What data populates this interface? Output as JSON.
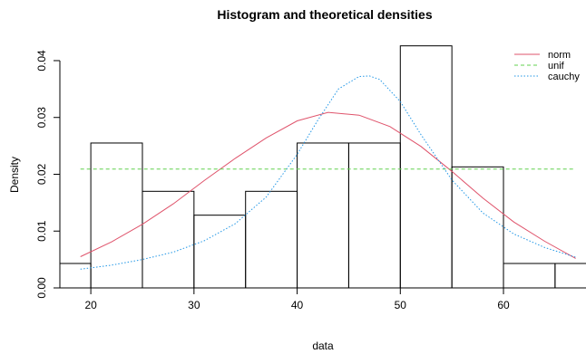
{
  "chart_data": {
    "type": "bar",
    "title": "Histogram and theoretical densities",
    "xlabel": "data",
    "ylabel": "Density",
    "xlim": [
      17,
      68
    ],
    "ylim": [
      0,
      0.0435
    ],
    "x_ticks": [
      20,
      30,
      40,
      50,
      60
    ],
    "y_ticks": [
      0.0,
      0.01,
      0.02,
      0.03,
      0.04
    ],
    "y_tick_labels": [
      "0.00",
      "0.01",
      "0.02",
      "0.03",
      "0.04"
    ],
    "grid": false,
    "legend_position": "top-right",
    "histogram": {
      "bins": [
        {
          "x0": 15,
          "x1": 20,
          "density": 0.0043
        },
        {
          "x0": 20,
          "x1": 25,
          "density": 0.0255
        },
        {
          "x0": 25,
          "x1": 30,
          "density": 0.017
        },
        {
          "x0": 30,
          "x1": 35,
          "density": 0.0128
        },
        {
          "x0": 35,
          "x1": 40,
          "density": 0.017
        },
        {
          "x0": 40,
          "x1": 45,
          "density": 0.0255
        },
        {
          "x0": 45,
          "x1": 50,
          "density": 0.0255
        },
        {
          "x0": 50,
          "x1": 55,
          "density": 0.0426
        },
        {
          "x0": 55,
          "x1": 60,
          "density": 0.0213
        },
        {
          "x0": 60,
          "x1": 65,
          "density": 0.0043
        },
        {
          "x0": 65,
          "x1": 70,
          "density": 0.0043
        }
      ]
    },
    "series": [
      {
        "name": "norm",
        "color": "#DF536B",
        "style": "solid",
        "x": [
          19,
          22,
          25,
          28,
          31,
          34,
          37,
          40,
          43,
          46,
          49,
          52,
          55,
          58,
          61,
          64,
          67
        ],
        "y": [
          0.0055,
          0.0081,
          0.0112,
          0.0148,
          0.0189,
          0.0228,
          0.0264,
          0.0294,
          0.0309,
          0.0304,
          0.0284,
          0.0249,
          0.0205,
          0.0158,
          0.0116,
          0.0082,
          0.0052
        ]
      },
      {
        "name": "unif",
        "color": "#61D04F",
        "style": "dashed",
        "x": [
          19,
          67
        ],
        "y": [
          0.0209,
          0.0209
        ]
      },
      {
        "name": "cauchy",
        "color": "#2297E6",
        "style": "dotted",
        "x": [
          19,
          22,
          25,
          28,
          31,
          34,
          37,
          40,
          42,
          44,
          46,
          47,
          48,
          50,
          52,
          55,
          58,
          61,
          64,
          67
        ],
        "y": [
          0.0033,
          0.004,
          0.005,
          0.0063,
          0.0083,
          0.0113,
          0.016,
          0.0235,
          0.0295,
          0.035,
          0.0372,
          0.0373,
          0.0367,
          0.0328,
          0.027,
          0.019,
          0.0132,
          0.0095,
          0.0071,
          0.0054
        ]
      }
    ]
  }
}
